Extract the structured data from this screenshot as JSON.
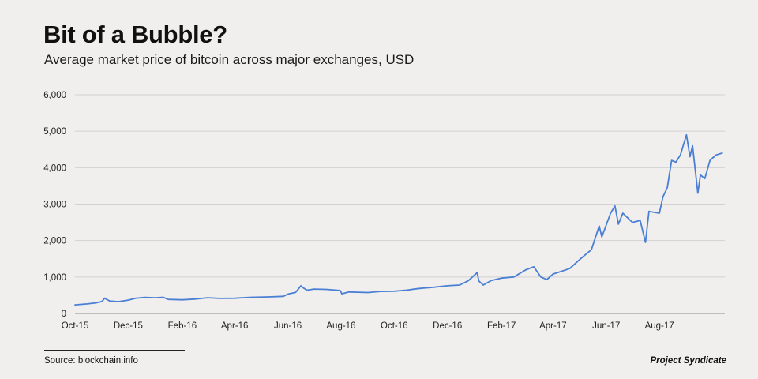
{
  "header": {
    "title": "Bit of a Bubble?",
    "subtitle": "Average market price of bitcoin across major exchanges, USD"
  },
  "footer": {
    "source": "Source: blockchain.info",
    "brand": "Project Syndicate"
  },
  "colors": {
    "line": "#4a7fd4",
    "grid": "#d2d2d2",
    "axis": "#8c8c8c",
    "background": "#f0efee"
  },
  "chart_data": {
    "type": "line",
    "title": "Bit of a Bubble?",
    "subtitle": "Average market price of bitcoin across major exchanges, USD",
    "xlabel": "",
    "ylabel": "",
    "x_ticks": [
      "Oct-15",
      "Dec-15",
      "Feb-16",
      "Apr-16",
      "Jun-16",
      "Aug-16",
      "Oct-16",
      "Dec-16",
      "Feb-17",
      "Apr-17",
      "Jun-17",
      "Aug-17"
    ],
    "y_ticks": [
      "0",
      "1,000",
      "2,000",
      "3,000",
      "4,000",
      "5,000",
      "6,000"
    ],
    "ylim": [
      0,
      6000
    ],
    "xlim": [
      "2015-10-01",
      "2017-10-15"
    ],
    "grid": true,
    "legend": "none",
    "series": [
      {
        "points": [
          [
            "2015-10-01",
            237
          ],
          [
            "2015-10-15",
            262
          ],
          [
            "2015-10-25",
            290
          ],
          [
            "2015-11-01",
            330
          ],
          [
            "2015-11-04",
            420
          ],
          [
            "2015-11-06",
            390
          ],
          [
            "2015-11-10",
            340
          ],
          [
            "2015-11-20",
            325
          ],
          [
            "2015-12-01",
            365
          ],
          [
            "2015-12-10",
            420
          ],
          [
            "2015-12-20",
            440
          ],
          [
            "2016-01-01",
            430
          ],
          [
            "2016-01-10",
            445
          ],
          [
            "2016-01-16",
            385
          ],
          [
            "2016-02-01",
            375
          ],
          [
            "2016-02-15",
            395
          ],
          [
            "2016-03-01",
            430
          ],
          [
            "2016-03-15",
            413
          ],
          [
            "2016-04-01",
            418
          ],
          [
            "2016-04-20",
            445
          ],
          [
            "2016-05-10",
            455
          ],
          [
            "2016-05-27",
            470
          ],
          [
            "2016-06-01",
            530
          ],
          [
            "2016-06-10",
            580
          ],
          [
            "2016-06-16",
            760
          ],
          [
            "2016-06-19",
            700
          ],
          [
            "2016-06-23",
            640
          ],
          [
            "2016-07-01",
            670
          ],
          [
            "2016-07-15",
            660
          ],
          [
            "2016-07-31",
            630
          ],
          [
            "2016-08-02",
            540
          ],
          [
            "2016-08-10",
            590
          ],
          [
            "2016-09-01",
            575
          ],
          [
            "2016-09-15",
            605
          ],
          [
            "2016-10-01",
            610
          ],
          [
            "2016-10-15",
            640
          ],
          [
            "2016-10-26",
            675
          ],
          [
            "2016-11-05",
            700
          ],
          [
            "2016-11-15",
            720
          ],
          [
            "2016-12-01",
            760
          ],
          [
            "2016-12-15",
            780
          ],
          [
            "2016-12-25",
            900
          ],
          [
            "2017-01-04",
            1120
          ],
          [
            "2017-01-06",
            890
          ],
          [
            "2017-01-11",
            780
          ],
          [
            "2017-01-20",
            900
          ],
          [
            "2017-02-01",
            970
          ],
          [
            "2017-02-15",
            1000
          ],
          [
            "2017-03-01",
            1200
          ],
          [
            "2017-03-10",
            1280
          ],
          [
            "2017-03-18",
            1000
          ],
          [
            "2017-03-25",
            930
          ],
          [
            "2017-04-01",
            1080
          ],
          [
            "2017-04-20",
            1230
          ],
          [
            "2017-05-05",
            1550
          ],
          [
            "2017-05-15",
            1750
          ],
          [
            "2017-05-24",
            2400
          ],
          [
            "2017-05-27",
            2100
          ],
          [
            "2017-06-06",
            2750
          ],
          [
            "2017-06-11",
            2950
          ],
          [
            "2017-06-15",
            2450
          ],
          [
            "2017-06-20",
            2750
          ],
          [
            "2017-07-01",
            2500
          ],
          [
            "2017-07-10",
            2550
          ],
          [
            "2017-07-16",
            1950
          ],
          [
            "2017-07-20",
            2800
          ],
          [
            "2017-08-01",
            2750
          ],
          [
            "2017-08-05",
            3200
          ],
          [
            "2017-08-10",
            3450
          ],
          [
            "2017-08-15",
            4200
          ],
          [
            "2017-08-20",
            4150
          ],
          [
            "2017-08-25",
            4350
          ],
          [
            "2017-09-01",
            4900
          ],
          [
            "2017-09-05",
            4300
          ],
          [
            "2017-09-08",
            4600
          ],
          [
            "2017-09-14",
            3300
          ],
          [
            "2017-09-17",
            3800
          ],
          [
            "2017-09-22",
            3700
          ],
          [
            "2017-09-28",
            4200
          ],
          [
            "2017-10-05",
            4350
          ],
          [
            "2017-10-12",
            4400
          ]
        ]
      }
    ]
  }
}
